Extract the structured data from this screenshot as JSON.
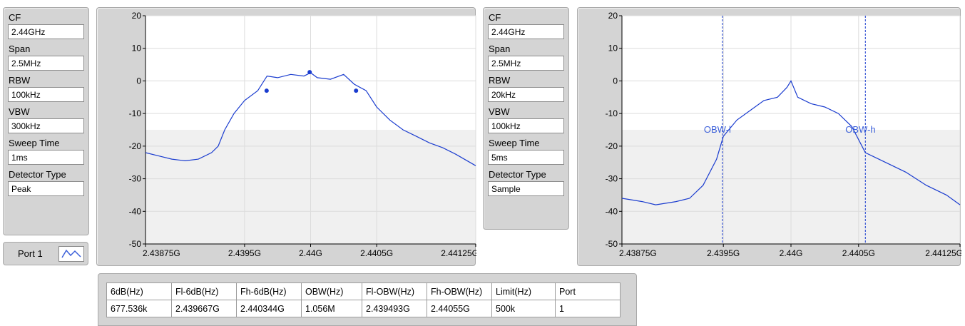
{
  "settings_left": {
    "cf_label": "CF",
    "cf_value": "2.44GHz",
    "span_label": "Span",
    "span_value": "2.5MHz",
    "rbw_label": "RBW",
    "rbw_value": "100kHz",
    "vbw_label": "VBW",
    "vbw_value": "300kHz",
    "sweep_label": "Sweep Time",
    "sweep_value": "1ms",
    "detector_label": "Detector Type",
    "detector_value": "Peak"
  },
  "settings_right": {
    "cf_label": "CF",
    "cf_value": "2.44GHz",
    "span_label": "Span",
    "span_value": "2.5MHz",
    "rbw_label": "RBW",
    "rbw_value": "20kHz",
    "vbw_label": "VBW",
    "vbw_value": "100kHz",
    "sweep_label": "Sweep Time",
    "sweep_value": "5ms",
    "detector_label": "Detector Type",
    "detector_value": "Sample"
  },
  "port_selector": {
    "label": "Port 1",
    "icon": "waveform-icon"
  },
  "colors": {
    "trace": "#1a3ccf",
    "panel": "#d4d4d4",
    "plot_top": "#ffffff",
    "plot_bottom": "#f0f0f0"
  },
  "chart_data": [
    {
      "type": "line",
      "x_tick_labels": [
        "2.43875G",
        "2.4395G",
        "2.44G",
        "2.4405G",
        "2.44125G"
      ],
      "x_ticks": [
        2438.75,
        2439.5,
        2440.0,
        2440.5,
        2441.25
      ],
      "xlim": [
        2438.75,
        2441.25
      ],
      "ylim": [
        -50,
        20
      ],
      "y_ticks": [
        -50,
        -40,
        -30,
        -20,
        -10,
        0,
        10,
        20
      ],
      "grid": true,
      "series": [
        {
          "x": [
            2438.75,
            2438.85,
            2438.95,
            2439.05,
            2439.15,
            2439.25,
            2439.3,
            2439.35,
            2439.42,
            2439.5,
            2439.6,
            2439.67,
            2439.75,
            2439.85,
            2439.95,
            2440.0,
            2440.05,
            2440.15,
            2440.25,
            2440.33,
            2440.42,
            2440.5,
            2440.6,
            2440.7,
            2440.8,
            2440.9,
            2441.0,
            2441.1,
            2441.25
          ],
          "y": [
            -22,
            -23,
            -24,
            -24.5,
            -24,
            -22,
            -20,
            -15,
            -10,
            -6,
            -3,
            1.5,
            1,
            2,
            1.5,
            2.5,
            1,
            0.5,
            2,
            -1,
            -3,
            -8,
            -12,
            -15,
            -17,
            -19,
            -20.5,
            -22.5,
            -26
          ]
        }
      ],
      "markers": [
        {
          "x": 2439.667,
          "y": -3
        },
        {
          "x": 2439.993,
          "y": 2.7
        },
        {
          "x": 2440.344,
          "y": -3
        }
      ]
    },
    {
      "type": "line",
      "x_tick_labels": [
        "2.43875G",
        "2.4395G",
        "2.44G",
        "2.4405G",
        "2.44125G"
      ],
      "x_ticks": [
        2438.75,
        2439.5,
        2440.0,
        2440.5,
        2441.25
      ],
      "xlim": [
        2438.75,
        2441.25
      ],
      "ylim": [
        -50,
        20
      ],
      "y_ticks": [
        -50,
        -40,
        -30,
        -20,
        -10,
        0,
        10,
        20
      ],
      "grid": true,
      "series": [
        {
          "x": [
            2438.75,
            2438.9,
            2439.0,
            2439.15,
            2439.25,
            2439.35,
            2439.45,
            2439.5,
            2439.6,
            2439.7,
            2439.8,
            2439.9,
            2439.97,
            2440.0,
            2440.05,
            2440.15,
            2440.25,
            2440.35,
            2440.45,
            2440.5,
            2440.55,
            2440.7,
            2440.85,
            2441.0,
            2441.15,
            2441.25
          ],
          "y": [
            -36,
            -37,
            -38,
            -37,
            -36,
            -32,
            -24,
            -17,
            -12,
            -9,
            -6,
            -5,
            -2,
            0,
            -5,
            -7,
            -8,
            -10,
            -14,
            -18,
            -22,
            -25,
            -28,
            -32,
            -35,
            -38
          ]
        }
      ],
      "cursors": [
        {
          "label": "OBW-l",
          "x": 2439.493
        },
        {
          "label": "OBW-h",
          "x": 2440.55
        }
      ]
    }
  ],
  "results_table": {
    "headers": [
      "6dB(Hz)",
      "Fl-6dB(Hz)",
      "Fh-6dB(Hz)",
      "OBW(Hz)",
      "Fl-OBW(Hz)",
      "Fh-OBW(Hz)",
      "Limit(Hz)",
      "Port"
    ],
    "row": [
      "677.536k",
      "2.439667G",
      "2.440344G",
      "1.056M",
      "2.439493G",
      "2.44055G",
      "500k",
      "1"
    ]
  }
}
